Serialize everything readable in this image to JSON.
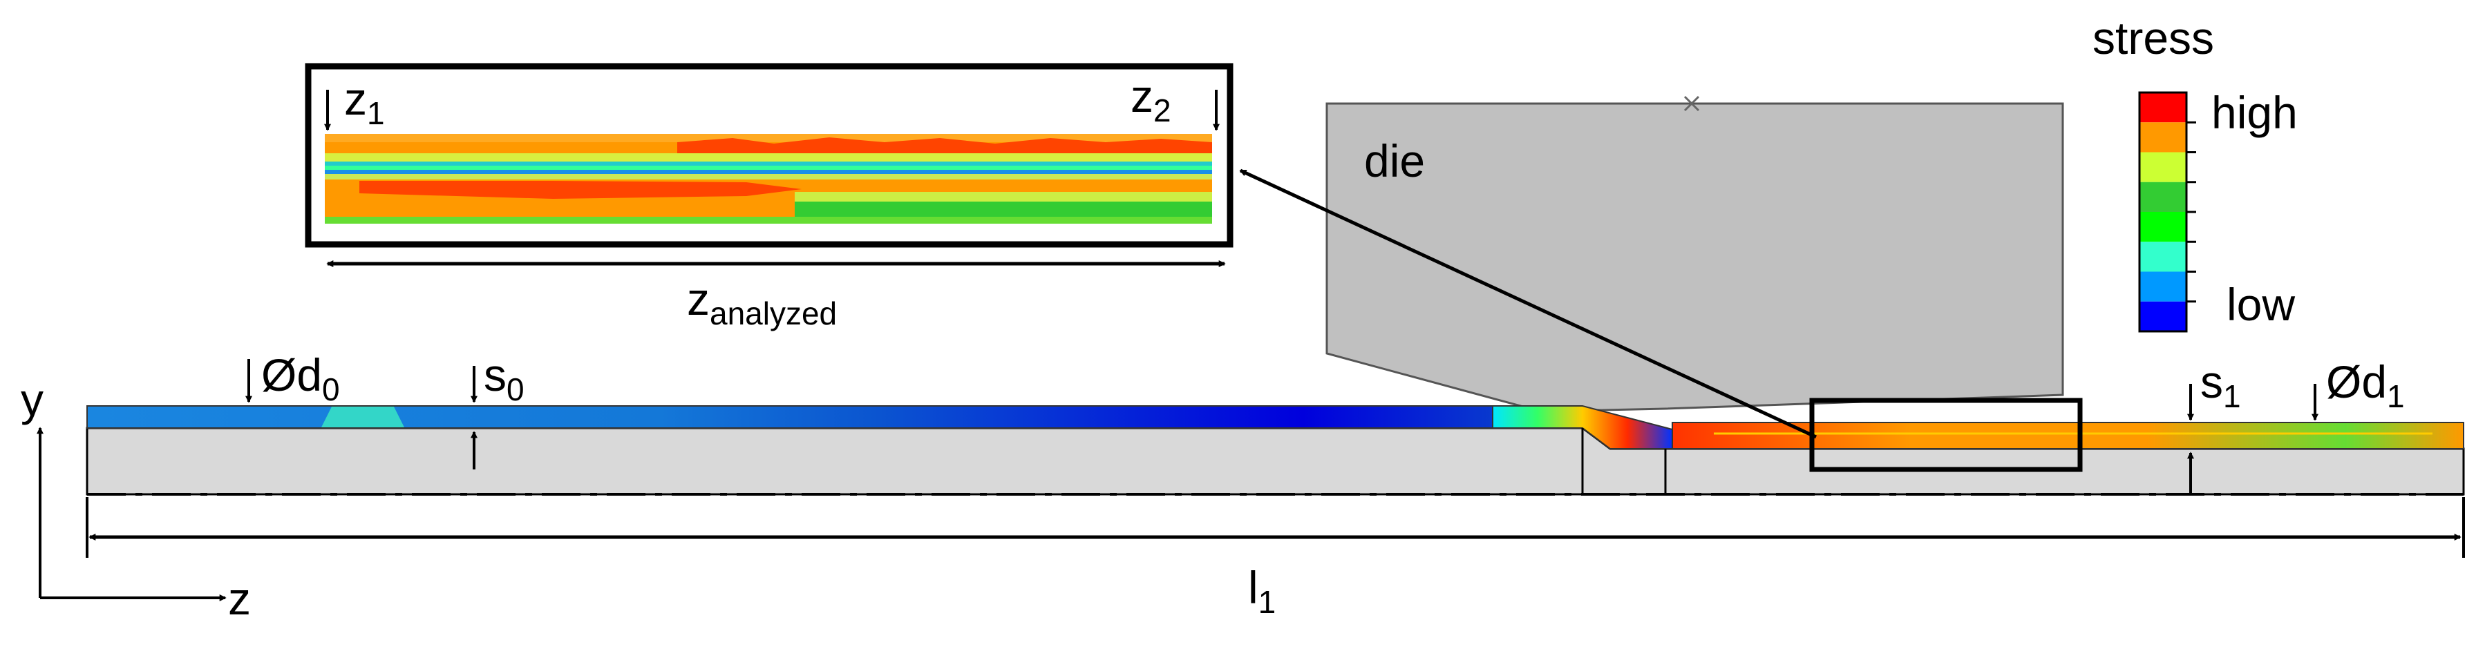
{
  "labels": {
    "y_axis": "y",
    "z_axis": "z",
    "d0": {
      "prefix": "Ød",
      "sub": "0"
    },
    "s0": {
      "prefix": "s",
      "sub": "0"
    },
    "s1": {
      "prefix": "s",
      "sub": "1"
    },
    "d1": {
      "prefix": "Ød",
      "sub": "1"
    },
    "l1": {
      "prefix": "l",
      "sub": "1"
    },
    "z1": {
      "prefix": "z",
      "sub": "1"
    },
    "z2": {
      "prefix": "z",
      "sub": "2"
    },
    "z_analyzed": {
      "prefix": "z",
      "sub": "analyzed"
    },
    "die": "die"
  },
  "legend": {
    "title": "stress",
    "high": "high",
    "low": "low",
    "colors": [
      "#ff0000",
      "#ff9900",
      "#ccff33",
      "#33cc33",
      "#00ff00",
      "#33ffcc",
      "#0099ff",
      "#0000ff"
    ]
  },
  "colors": {
    "die": "#c0c0c0",
    "workpiece_body": "#d9d9d9",
    "outline": "#000000"
  }
}
